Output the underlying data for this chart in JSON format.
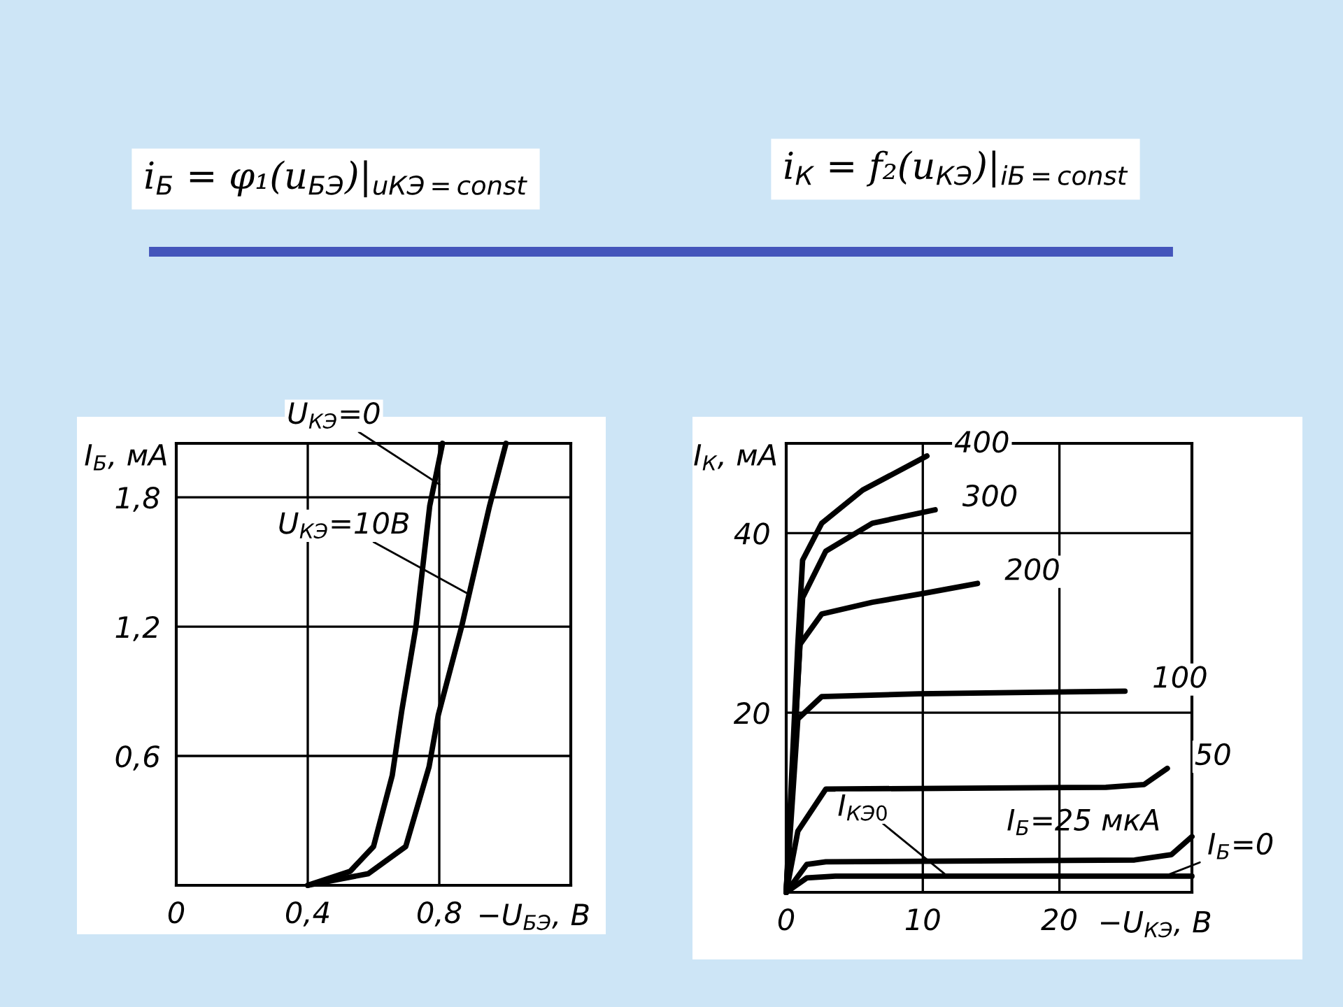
{
  "chart_data": [
    {
      "type": "line",
      "title": "i$_{Б}$ = φ₁(u$_{БЭ}$)|$_{uКЭ=const}$",
      "xlabel": "−U$_{БЭ}$, В",
      "ylabel": "I$_{Б}$, мА",
      "xlim": [
        0,
        1.2
      ],
      "ylim": [
        0,
        2.05
      ],
      "xticks": [
        {
          "value": 0,
          "label": "0"
        },
        {
          "value": 0.4,
          "label": "0,4"
        },
        {
          "value": 0.8,
          "label": "0,8"
        }
      ],
      "yticks": [
        {
          "value": 0.6,
          "label": "0,6"
        },
        {
          "value": 1.2,
          "label": "1,2"
        },
        {
          "value": 1.8,
          "label": "1,8"
        }
      ],
      "grid": true,
      "legend": false,
      "series": [
        {
          "color": "#000000",
          "x": [
            0.4,
            0.529,
            0.6,
            0.657,
            0.686,
            0.729,
            0.771,
            0.81
          ],
          "values": [
            0,
            0.065,
            0.18,
            0.51,
            0.81,
            1.2,
            1.76,
            2.05
          ]
        },
        {
          "color": "#000000",
          "x": [
            0.4,
            0.584,
            0.698,
            0.769,
            0.797,
            0.868,
            0.953,
            1.003
          ],
          "values": [
            0,
            0.054,
            0.18,
            0.55,
            0.79,
            1.2,
            1.76,
            2.05
          ]
        }
      ],
      "annotations": [
        {
          "text": "U$_{КЭ}$=0",
          "x": 0.8,
          "y": 1.86
        },
        {
          "text": "U$_{КЭ}$=10В",
          "x": 0.89,
          "y": 1.35
        }
      ]
    },
    {
      "type": "line",
      "title": "i$_{К}$ = f₂(u$_{КЭ}$)|$_{iБ=const}$",
      "xlabel": "−U$_{КЭ}$, В",
      "ylabel": "I$_{К}$, мА",
      "xlim": [
        0,
        29.7
      ],
      "ylim": [
        0,
        50
      ],
      "xticks": [
        {
          "value": 0,
          "label": "0"
        },
        10,
        20
      ],
      "yticks": [
        20,
        40
      ],
      "grid": true,
      "legend": false,
      "series": [
        {
          "name": "400",
          "color": "#000000",
          "x": [
            0,
            0.85,
            1.2,
            2.6,
            5.6,
            10.3
          ],
          "values": [
            0,
            27.6,
            37,
            41.1,
            44.8,
            48.6
          ]
        },
        {
          "name": "300",
          "color": "#000000",
          "x": [
            0,
            1.2,
            2.9,
            6.3,
            10.9
          ],
          "values": [
            0,
            32.8,
            38,
            41.1,
            42.6
          ]
        },
        {
          "name": "200",
          "color": "#000000",
          "x": [
            0,
            1,
            2.6,
            6.3,
            10.1,
            14
          ],
          "values": [
            0,
            27.6,
            31,
            32.3,
            33.3,
            34.4
          ]
        },
        {
          "name": "100",
          "color": "#000000",
          "x": [
            0,
            0.85,
            2.6,
            9.7,
            24.8
          ],
          "values": [
            0,
            19.3,
            21.8,
            22.1,
            22.4
          ]
        },
        {
          "name": "50",
          "color": "#000000",
          "x": [
            0,
            0.85,
            2.9,
            23.4,
            26.2,
            27.9
          ],
          "values": [
            0,
            6.8,
            11.5,
            11.7,
            12,
            13.8
          ]
        },
        {
          "name": "I$_{Б}$=25 мкА",
          "color": "#000000",
          "x": [
            0,
            1.5,
            2.9,
            25.5,
            28.2,
            29.7
          ],
          "values": [
            0,
            3.1,
            3.4,
            3.6,
            4.2,
            6.2
          ]
        },
        {
          "name": "I$_{Б}$=0",
          "color": "#000000",
          "x": [
            0,
            1.5,
            3.6,
            29.7
          ],
          "values": [
            0,
            1.6,
            1.8,
            1.8
          ]
        }
      ],
      "annotations": [
        {
          "text": "I$_{КЭ0}$",
          "x": 11.8,
          "y": 1.8
        }
      ]
    }
  ]
}
